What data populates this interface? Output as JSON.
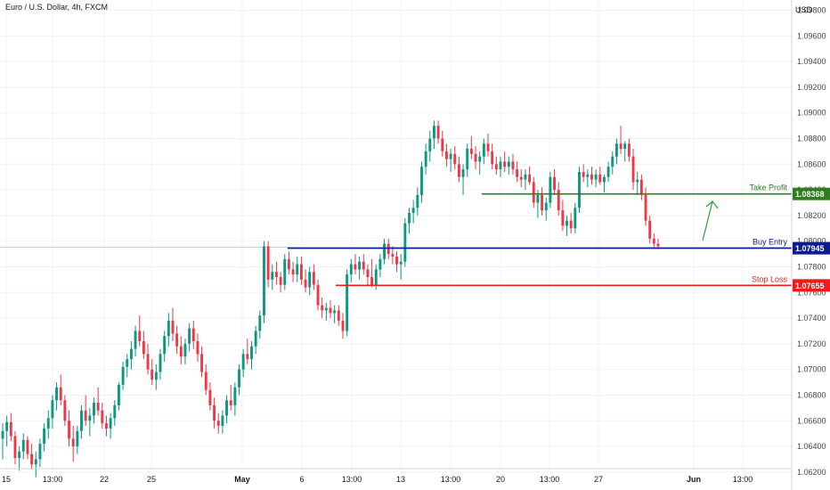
{
  "header": {
    "title": "Euro / U.S. Dollar, 4h, FXCM",
    "currency": "USD"
  },
  "colors": {
    "up": "#089981",
    "down": "#f23645",
    "tp": "#2e7d1e",
    "entry": "#0d1b8c",
    "sl": "#f21b1b",
    "grid": "#f0f3fa"
  },
  "chart_data": {
    "type": "candlestick",
    "ylim": [
      1.0606,
      1.0988
    ],
    "y_ticks": [
      "1.06200",
      "1.06400",
      "1.06600",
      "1.06800",
      "1.07000",
      "1.07200",
      "1.07400",
      "1.07600",
      "1.07800",
      "1.08000",
      "1.08200",
      "1.08400",
      "1.08600",
      "1.08800",
      "1.09000",
      "1.09200",
      "1.09400",
      "1.09600",
      "1.09800"
    ],
    "x_ticks": [
      "15",
      "13:00",
      "22",
      "25",
      "May",
      "6",
      "13:00",
      "13",
      "13:00",
      "20",
      "13:00",
      "27",
      "Jun",
      "13:00"
    ],
    "levels": [
      {
        "name": "Take Profit",
        "value": "1.08368"
      },
      {
        "name": "Buy Entry",
        "value": "1.07945"
      },
      {
        "name": "Stop Loss",
        "value": "1.07655"
      }
    ],
    "last_price": 1.07952,
    "candles": [
      [
        1.0646,
        1.0658,
        1.063,
        1.0652
      ],
      [
        1.0652,
        1.0664,
        1.064,
        1.0659
      ],
      [
        1.0659,
        1.0666,
        1.0644,
        1.0648
      ],
      [
        1.0648,
        1.0652,
        1.0626,
        1.0631
      ],
      [
        1.0631,
        1.064,
        1.0621,
        1.0636
      ],
      [
        1.0636,
        1.065,
        1.063,
        1.0645
      ],
      [
        1.0645,
        1.0648,
        1.063,
        1.0634
      ],
      [
        1.0634,
        1.0642,
        1.0622,
        1.0626
      ],
      [
        1.0626,
        1.0636,
        1.0616,
        1.063
      ],
      [
        1.063,
        1.0646,
        1.0624,
        1.0642
      ],
      [
        1.0642,
        1.0658,
        1.0636,
        1.0654
      ],
      [
        1.0654,
        1.0668,
        1.0646,
        1.0662
      ],
      [
        1.0662,
        1.068,
        1.0654,
        1.0676
      ],
      [
        1.0676,
        1.069,
        1.0668,
        1.0686
      ],
      [
        1.0686,
        1.0696,
        1.0672,
        1.0676
      ],
      [
        1.0676,
        1.068,
        1.0656,
        1.066
      ],
      [
        1.066,
        1.0668,
        1.064,
        1.0646
      ],
      [
        1.0646,
        1.0656,
        1.0628,
        1.064
      ],
      [
        1.064,
        1.0656,
        1.0634,
        1.0652
      ],
      [
        1.0652,
        1.0672,
        1.0646,
        1.0668
      ],
      [
        1.0668,
        1.068,
        1.0656,
        1.066
      ],
      [
        1.066,
        1.067,
        1.0648,
        1.0664
      ],
      [
        1.0664,
        1.0678,
        1.0658,
        1.0674
      ],
      [
        1.0674,
        1.0686,
        1.0664,
        1.0668
      ],
      [
        1.0668,
        1.0674,
        1.0654,
        1.0658
      ],
      [
        1.0658,
        1.0664,
        1.0648,
        1.0654
      ],
      [
        1.0654,
        1.0666,
        1.0646,
        1.0662
      ],
      [
        1.0662,
        1.0676,
        1.0656,
        1.0672
      ],
      [
        1.0672,
        1.069,
        1.0668,
        1.0688
      ],
      [
        1.0688,
        1.0706,
        1.0684,
        1.0702
      ],
      [
        1.0702,
        1.0712,
        1.0694,
        1.0708
      ],
      [
        1.0708,
        1.0722,
        1.07,
        1.0716
      ],
      [
        1.0716,
        1.0734,
        1.071,
        1.073
      ],
      [
        1.073,
        1.0742,
        1.0718,
        1.0722
      ],
      [
        1.0722,
        1.073,
        1.0708,
        1.0712
      ],
      [
        1.0712,
        1.072,
        1.0696,
        1.07
      ],
      [
        1.07,
        1.0708,
        1.0688,
        1.0692
      ],
      [
        1.0692,
        1.0704,
        1.0684,
        1.0698
      ],
      [
        1.0698,
        1.0716,
        1.0692,
        1.0712
      ],
      [
        1.0712,
        1.073,
        1.0706,
        1.0726
      ],
      [
        1.0726,
        1.0744,
        1.0718,
        1.0738
      ],
      [
        1.0738,
        1.0748,
        1.0722,
        1.0728
      ],
      [
        1.0728,
        1.0734,
        1.0712,
        1.0718
      ],
      [
        1.0718,
        1.0726,
        1.0704,
        1.071
      ],
      [
        1.071,
        1.0724,
        1.0704,
        1.072
      ],
      [
        1.072,
        1.0736,
        1.0714,
        1.0732
      ],
      [
        1.0732,
        1.0738,
        1.0716,
        1.0722
      ],
      [
        1.0722,
        1.0728,
        1.0706,
        1.0712
      ],
      [
        1.0712,
        1.0718,
        1.0694,
        1.0698
      ],
      [
        1.0698,
        1.0704,
        1.068,
        1.0684
      ],
      [
        1.0684,
        1.069,
        1.0668,
        1.0672
      ],
      [
        1.0672,
        1.0678,
        1.0654,
        1.066
      ],
      [
        1.066,
        1.0666,
        1.065,
        1.0656
      ],
      [
        1.0656,
        1.0668,
        1.065,
        1.0664
      ],
      [
        1.0664,
        1.068,
        1.0658,
        1.0676
      ],
      [
        1.0676,
        1.0688,
        1.0668,
        1.0672
      ],
      [
        1.0672,
        1.069,
        1.0664,
        1.0686
      ],
      [
        1.0686,
        1.0704,
        1.068,
        1.07
      ],
      [
        1.07,
        1.0716,
        1.0694,
        1.0712
      ],
      [
        1.0712,
        1.0724,
        1.0704,
        1.0708
      ],
      [
        1.0708,
        1.0722,
        1.07,
        1.0718
      ],
      [
        1.0718,
        1.0734,
        1.0712,
        1.073
      ],
      [
        1.073,
        1.0746,
        1.0724,
        1.0742
      ],
      [
        1.0742,
        1.08,
        1.0736,
        1.0796
      ],
      [
        1.0796,
        1.08,
        1.0764,
        1.077
      ],
      [
        1.077,
        1.0782,
        1.0762,
        1.0776
      ],
      [
        1.0776,
        1.0784,
        1.0766,
        1.0772
      ],
      [
        1.0772,
        1.0776,
        1.076,
        1.0766
      ],
      [
        1.0766,
        1.079,
        1.0762,
        1.0786
      ],
      [
        1.0786,
        1.0792,
        1.0774,
        1.0778
      ],
      [
        1.0778,
        1.0784,
        1.0768,
        1.0774
      ],
      [
        1.0774,
        1.0788,
        1.0768,
        1.0782
      ],
      [
        1.0782,
        1.0788,
        1.0766,
        1.077
      ],
      [
        1.077,
        1.0778,
        1.076,
        1.0764
      ],
      [
        1.0764,
        1.078,
        1.0758,
        1.0776
      ],
      [
        1.0776,
        1.0782,
        1.0762,
        1.0766
      ],
      [
        1.0766,
        1.077,
        1.0746,
        1.075
      ],
      [
        1.075,
        1.0756,
        1.074,
        1.0746
      ],
      [
        1.0746,
        1.0752,
        1.0738,
        1.0748
      ],
      [
        1.0748,
        1.0754,
        1.074,
        1.0744
      ],
      [
        1.0744,
        1.075,
        1.0736,
        1.0746
      ],
      [
        1.0746,
        1.075,
        1.0734,
        1.0738
      ],
      [
        1.0738,
        1.0744,
        1.0724,
        1.073
      ],
      [
        1.073,
        1.0778,
        1.0726,
        1.0774
      ],
      [
        1.0774,
        1.0786,
        1.0768,
        1.0782
      ],
      [
        1.0782,
        1.079,
        1.0774,
        1.0778
      ],
      [
        1.0778,
        1.0788,
        1.077,
        1.0784
      ],
      [
        1.0784,
        1.079,
        1.0774,
        1.0778
      ],
      [
        1.0778,
        1.0782,
        1.0766,
        1.0772
      ],
      [
        1.0772,
        1.0786,
        1.0764,
        1.0766
      ],
      [
        1.0766,
        1.0782,
        1.0762,
        1.0778
      ],
      [
        1.0778,
        1.079,
        1.0772,
        1.0786
      ],
      [
        1.0786,
        1.0802,
        1.0782,
        1.0798
      ],
      [
        1.0798,
        1.0802,
        1.0786,
        1.079
      ],
      [
        1.079,
        1.0796,
        1.0782,
        1.0788
      ],
      [
        1.0788,
        1.0792,
        1.0776,
        1.0782
      ],
      [
        1.0782,
        1.079,
        1.077,
        1.0784
      ],
      [
        1.0784,
        1.0818,
        1.078,
        1.0814
      ],
      [
        1.0814,
        1.0826,
        1.0806,
        1.0822
      ],
      [
        1.0822,
        1.0832,
        1.0814,
        1.0826
      ],
      [
        1.0826,
        1.0842,
        1.082,
        1.0836
      ],
      [
        1.0836,
        1.0862,
        1.083,
        1.0858
      ],
      [
        1.0858,
        1.0876,
        1.0852,
        1.087
      ],
      [
        1.087,
        1.0886,
        1.0862,
        1.088
      ],
      [
        1.088,
        1.0894,
        1.0872,
        1.089
      ],
      [
        1.089,
        1.0894,
        1.0876,
        1.088
      ],
      [
        1.088,
        1.0886,
        1.0866,
        1.087
      ],
      [
        1.087,
        1.0876,
        1.0858,
        1.0864
      ],
      [
        1.0864,
        1.0872,
        1.0854,
        1.0868
      ],
      [
        1.0868,
        1.0874,
        1.0856,
        1.086
      ],
      [
        1.086,
        1.0866,
        1.0846,
        1.085
      ],
      [
        1.085,
        1.086,
        1.0836,
        1.0856
      ],
      [
        1.0856,
        1.0876,
        1.085,
        1.0872
      ],
      [
        1.0872,
        1.0882,
        1.0864,
        1.0868
      ],
      [
        1.0868,
        1.0874,
        1.0856,
        1.0862
      ],
      [
        1.0862,
        1.087,
        1.0852,
        1.0866
      ],
      [
        1.0866,
        1.088,
        1.086,
        1.0876
      ],
      [
        1.0876,
        1.0884,
        1.0866,
        1.087
      ],
      [
        1.087,
        1.0876,
        1.0856,
        1.086
      ],
      [
        1.086,
        1.0866,
        1.0852,
        1.0856
      ],
      [
        1.0856,
        1.0866,
        1.085,
        1.0862
      ],
      [
        1.0862,
        1.087,
        1.0854,
        1.0858
      ],
      [
        1.0858,
        1.0866,
        1.0852,
        1.0862
      ],
      [
        1.0862,
        1.0868,
        1.0852,
        1.0856
      ],
      [
        1.0856,
        1.0862,
        1.0846,
        1.085
      ],
      [
        1.085,
        1.0856,
        1.0842,
        1.0848
      ],
      [
        1.0848,
        1.0856,
        1.084,
        1.0852
      ],
      [
        1.0852,
        1.0858,
        1.0844,
        1.0846
      ],
      [
        1.0846,
        1.085,
        1.0826,
        1.083
      ],
      [
        1.083,
        1.084,
        1.0818,
        1.0836
      ],
      [
        1.0836,
        1.0842,
        1.082,
        1.0824
      ],
      [
        1.0824,
        1.0834,
        1.0816,
        1.083
      ],
      [
        1.083,
        1.0854,
        1.0826,
        1.085
      ],
      [
        1.085,
        1.0856,
        1.0836,
        1.084
      ],
      [
        1.084,
        1.0846,
        1.082,
        1.0824
      ],
      [
        1.0824,
        1.0832,
        1.0808,
        1.0812
      ],
      [
        1.0812,
        1.082,
        1.0804,
        1.0816
      ],
      [
        1.0816,
        1.0822,
        1.0806,
        1.081
      ],
      [
        1.081,
        1.083,
        1.0806,
        1.0826
      ],
      [
        1.0826,
        1.0858,
        1.0822,
        1.0854
      ],
      [
        1.0854,
        1.086,
        1.0846,
        1.085
      ],
      [
        1.085,
        1.0856,
        1.0842,
        1.0852
      ],
      [
        1.0852,
        1.0858,
        1.0844,
        1.0848
      ],
      [
        1.0848,
        1.0856,
        1.0842,
        1.0852
      ],
      [
        1.0852,
        1.0858,
        1.0844,
        1.0846
      ],
      [
        1.0846,
        1.0852,
        1.0838,
        1.085
      ],
      [
        1.085,
        1.0862,
        1.0846,
        1.0858
      ],
      [
        1.0858,
        1.087,
        1.0852,
        1.0866
      ],
      [
        1.0866,
        1.088,
        1.086,
        1.0876
      ],
      [
        1.0876,
        1.089,
        1.0868,
        1.0872
      ],
      [
        1.0872,
        1.0878,
        1.0862,
        1.0876
      ],
      [
        1.0876,
        1.088,
        1.0862,
        1.0866
      ],
      [
        1.0866,
        1.0872,
        1.084,
        1.0846
      ],
      [
        1.0846,
        1.0854,
        1.0836,
        1.0848
      ],
      [
        1.0848,
        1.0852,
        1.0832,
        1.0836
      ],
      [
        1.0836,
        1.0842,
        1.0812,
        1.0816
      ],
      [
        1.0816,
        1.082,
        1.0798,
        1.0802
      ],
      [
        1.0802,
        1.0806,
        1.0794,
        1.0798
      ],
      [
        1.0798,
        1.0802,
        1.0794,
        1.0796
      ]
    ]
  }
}
